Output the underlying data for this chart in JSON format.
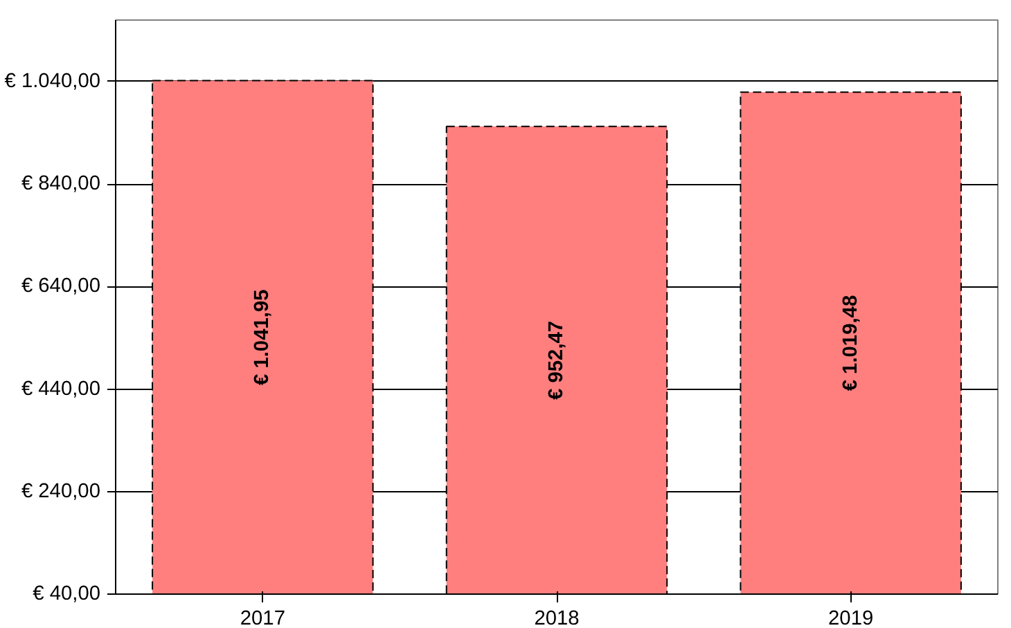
{
  "chart_data": {
    "type": "bar",
    "categories": [
      "2017",
      "2018",
      "2019"
    ],
    "values": [
      1041.95,
      952.47,
      1019.48
    ],
    "color": "#ff7f7f",
    "value_labels": [
      "€ 1.041,95",
      "€ 952,47",
      "€ 1.019,48"
    ],
    "ylim": [
      40,
      1160
    ],
    "yticks": [
      {
        "value": 40,
        "label": "€ 40,00"
      },
      {
        "value": 240,
        "label": "€ 240,00"
      },
      {
        "value": 440,
        "label": "€ 440,00"
      },
      {
        "value": 640,
        "label": "€ 640,00"
      },
      {
        "value": 840,
        "label": "€ 840,00"
      },
      {
        "value": 1040,
        "label": "€ 1.040,00"
      }
    ],
    "grid": "y"
  }
}
